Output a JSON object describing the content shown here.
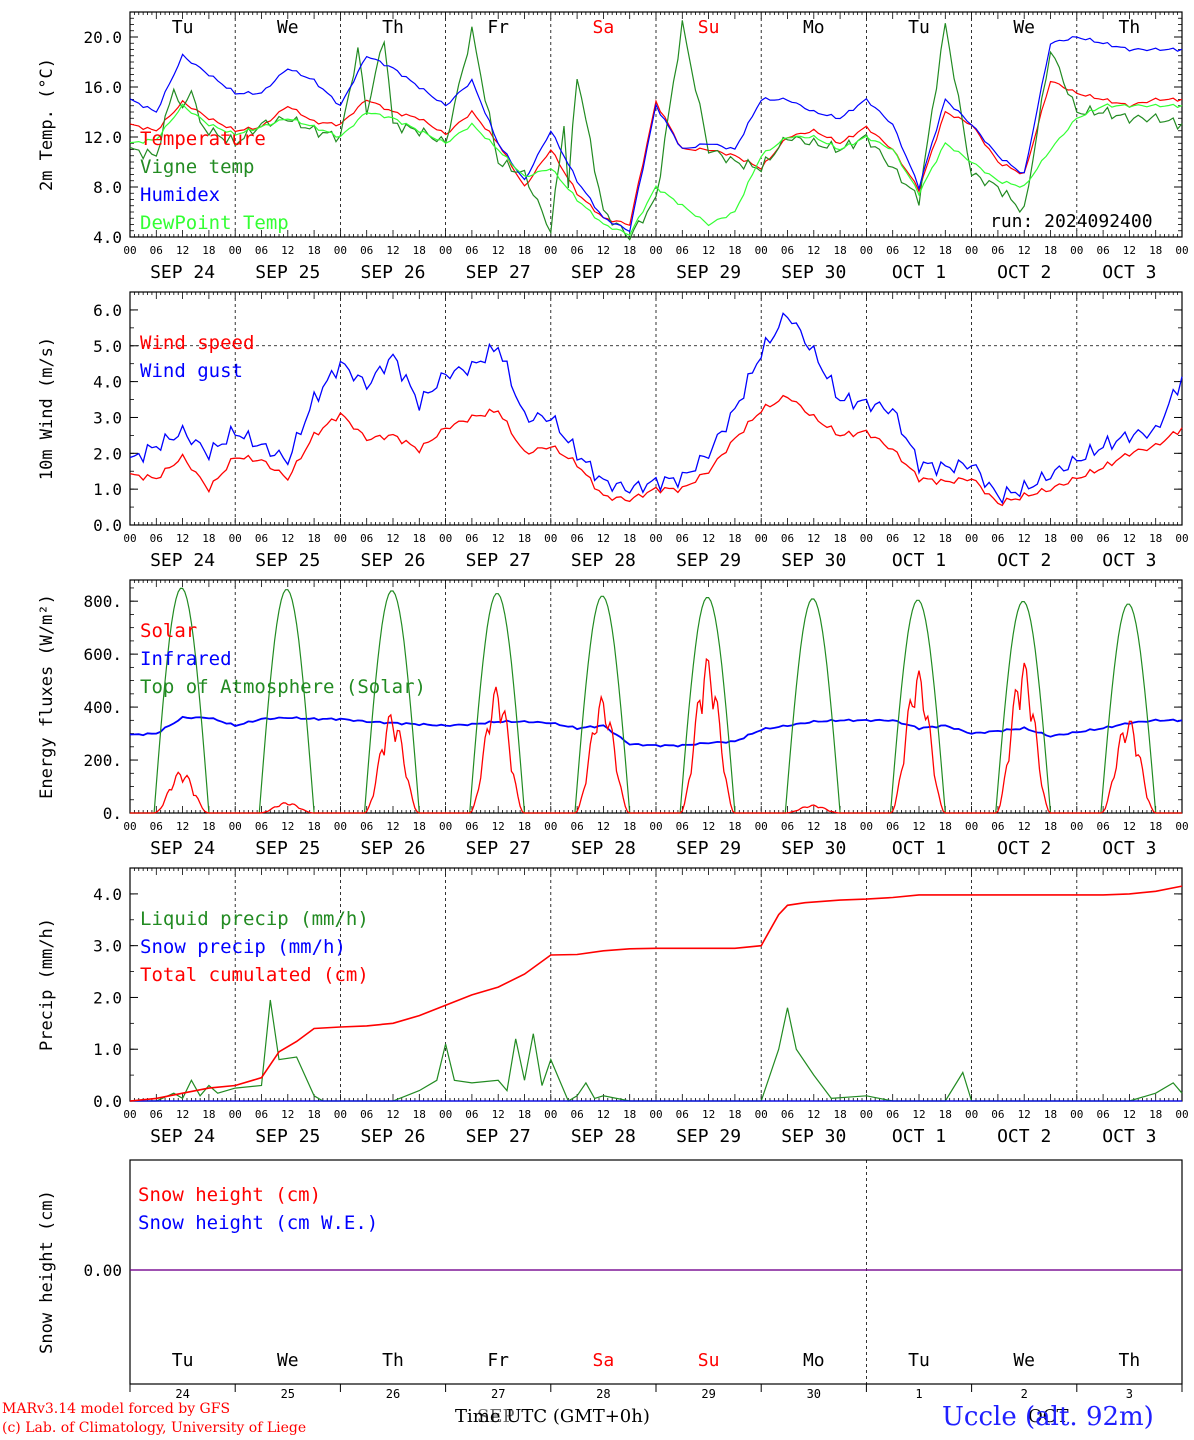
{
  "chart_data": [
    {
      "type": "line",
      "ylabel": "2m Temp. (°C)",
      "ylim": [
        4.0,
        22.0
      ],
      "yticks": [
        "4.0",
        "8.0",
        "12.0",
        "16.0",
        "20.0"
      ],
      "run_label": "run: 2024092400",
      "grid": "dashed at day boundaries",
      "legend_position": "left",
      "x_unit": "hours since 2024-09-24 00 UTC",
      "series": [
        {
          "name": "Temperature",
          "color": "#ff0000",
          "x": [
            0,
            6,
            12,
            18,
            24,
            30,
            36,
            42,
            48,
            54,
            60,
            66,
            72,
            78,
            84,
            90,
            96,
            102,
            108,
            114,
            120,
            126,
            132,
            138,
            144,
            150,
            156,
            162,
            168,
            174,
            180,
            186,
            192,
            198,
            204,
            210,
            216,
            222,
            228,
            234,
            240
          ],
          "values": [
            13.0,
            12.5,
            14.8,
            13.5,
            12.5,
            12.8,
            14.5,
            13.2,
            13.0,
            15.0,
            14.0,
            13.5,
            12.2,
            14.0,
            11.5,
            8.0,
            11.0,
            7.5,
            5.5,
            5.0,
            14.8,
            11.0,
            11.0,
            10.5,
            9.5,
            12.0,
            12.5,
            11.5,
            12.8,
            11.0,
            7.8,
            14.0,
            13.0,
            10.0,
            9.0,
            16.5,
            15.5,
            15.0,
            14.5,
            15.0,
            15.0
          ]
        },
        {
          "name": "Vigne temp",
          "color": "#228b22",
          "x": [
            0,
            6,
            10,
            12,
            14,
            16,
            18,
            24,
            30,
            36,
            42,
            48,
            52,
            54,
            58,
            60,
            66,
            72,
            78,
            84,
            90,
            96,
            99,
            100,
            102,
            108,
            114,
            120,
            126,
            132,
            138,
            144,
            150,
            156,
            162,
            168,
            174,
            180,
            186,
            192,
            198,
            204,
            210,
            216,
            222,
            228,
            234,
            240
          ],
          "values": [
            11.0,
            10.5,
            16.0,
            14.0,
            16.0,
            13.0,
            12.5,
            11.5,
            13.0,
            13.5,
            12.5,
            12.0,
            19.0,
            14.0,
            20.0,
            13.0,
            12.5,
            11.5,
            20.5,
            10.0,
            9.0,
            4.5,
            13.0,
            8.0,
            17.0,
            6.0,
            4.0,
            7.0,
            21.0,
            11.0,
            10.0,
            9.5,
            12.0,
            11.5,
            11.0,
            12.0,
            9.5,
            7.0,
            21.0,
            9.0,
            8.0,
            6.0,
            19.0,
            14.0,
            14.0,
            13.5,
            13.5,
            13.0
          ]
        },
        {
          "name": "Humidex",
          "color": "#0000ff",
          "x": [
            0,
            6,
            12,
            18,
            24,
            30,
            36,
            42,
            48,
            54,
            60,
            66,
            72,
            78,
            84,
            90,
            96,
            102,
            108,
            114,
            120,
            126,
            132,
            138,
            144,
            150,
            156,
            162,
            168,
            174,
            180,
            186,
            192,
            198,
            204,
            210,
            216,
            222,
            228,
            234,
            240
          ],
          "values": [
            15.0,
            14.0,
            18.5,
            17.0,
            15.5,
            15.5,
            17.5,
            16.5,
            14.5,
            18.5,
            17.5,
            16.0,
            14.5,
            16.5,
            11.5,
            8.5,
            12.5,
            8.5,
            5.5,
            4.5,
            14.5,
            11.0,
            11.5,
            11.0,
            15.0,
            15.0,
            14.0,
            13.5,
            15.0,
            13.0,
            8.0,
            15.0,
            13.0,
            10.5,
            9.0,
            19.5,
            20.0,
            19.5,
            19.0,
            19.0,
            19.0
          ]
        },
        {
          "name": "DewPoint Temp",
          "color": "#33ff33",
          "x": [
            0,
            6,
            12,
            18,
            24,
            30,
            36,
            42,
            48,
            54,
            60,
            66,
            72,
            78,
            84,
            90,
            96,
            102,
            108,
            114,
            120,
            126,
            132,
            138,
            144,
            150,
            156,
            162,
            168,
            174,
            180,
            186,
            192,
            198,
            204,
            210,
            216,
            222,
            228,
            234,
            240
          ],
          "values": [
            11.5,
            11.8,
            14.5,
            13.0,
            12.2,
            12.8,
            13.5,
            12.8,
            12.0,
            14.0,
            13.5,
            12.5,
            11.5,
            13.0,
            11.0,
            8.8,
            9.5,
            7.0,
            5.0,
            4.2,
            8.0,
            6.5,
            5.0,
            6.0,
            10.5,
            12.0,
            12.0,
            11.0,
            12.0,
            11.0,
            7.5,
            11.5,
            10.0,
            8.5,
            8.0,
            11.0,
            13.5,
            14.5,
            14.5,
            14.5,
            14.5
          ]
        }
      ]
    },
    {
      "type": "line",
      "ylabel": "10m Wind (m/s)",
      "ylim": [
        0.0,
        6.5
      ],
      "yticks": [
        "0.0",
        "1.0",
        "2.0",
        "3.0",
        "4.0",
        "5.0",
        "6.0"
      ],
      "reference_line": 5.0,
      "legend_position": "top-left",
      "x_unit": "hours since 2024-09-24 00 UTC",
      "series": [
        {
          "name": "Wind speed",
          "color": "#ff0000",
          "x": [
            0,
            6,
            12,
            18,
            24,
            30,
            36,
            42,
            48,
            54,
            60,
            66,
            72,
            78,
            84,
            90,
            96,
            102,
            108,
            114,
            120,
            126,
            132,
            138,
            144,
            150,
            156,
            162,
            168,
            174,
            180,
            186,
            192,
            198,
            204,
            210,
            216,
            222,
            228,
            234,
            240
          ],
          "values": [
            1.4,
            1.3,
            1.9,
            1.0,
            1.9,
            1.8,
            1.3,
            2.5,
            3.1,
            2.4,
            2.5,
            2.1,
            2.7,
            3.0,
            3.2,
            2.0,
            2.2,
            1.7,
            0.8,
            0.7,
            1.0,
            1.0,
            1.5,
            2.4,
            3.2,
            3.6,
            3.0,
            2.5,
            2.6,
            2.1,
            1.3,
            1.2,
            1.3,
            0.6,
            0.8,
            1.0,
            1.3,
            1.6,
            2.0,
            2.2,
            2.7
          ]
        },
        {
          "name": "Wind gust",
          "color": "#0000ff",
          "x": [
            0,
            6,
            12,
            18,
            24,
            30,
            36,
            42,
            48,
            54,
            60,
            66,
            72,
            78,
            84,
            90,
            96,
            102,
            108,
            114,
            120,
            126,
            132,
            138,
            144,
            150,
            156,
            162,
            168,
            174,
            180,
            186,
            192,
            198,
            204,
            210,
            216,
            222,
            228,
            234,
            240
          ],
          "values": [
            1.8,
            2.2,
            2.6,
            2.0,
            2.6,
            2.2,
            1.8,
            3.5,
            4.5,
            3.9,
            4.7,
            3.4,
            4.2,
            4.4,
            5.0,
            3.0,
            3.0,
            2.0,
            1.2,
            1.0,
            1.2,
            1.3,
            2.0,
            3.2,
            4.8,
            5.9,
            4.8,
            3.5,
            3.4,
            3.2,
            1.7,
            1.6,
            1.7,
            0.8,
            1.0,
            1.4,
            1.8,
            2.2,
            2.5,
            2.6,
            4.1
          ]
        }
      ]
    },
    {
      "type": "line",
      "ylabel": "Energy fluxes (W/m²)",
      "ylim": [
        0,
        880
      ],
      "yticks": [
        "0.",
        "200.",
        "400.",
        "600.",
        "800."
      ],
      "legend_position": "top-left",
      "x_unit": "hours since 2024-09-24 00 UTC",
      "daily_peaks": {
        "Solar": [
          160,
          40,
          380,
          480,
          440,
          590,
          30,
          540,
          575,
          360
        ],
        "Top of Atmosphere (Solar)": [
          850,
          845,
          840,
          830,
          820,
          815,
          810,
          805,
          800,
          790
        ]
      },
      "series": [
        {
          "name": "Solar",
          "color": "#ff0000"
        },
        {
          "name": "Infrared",
          "color": "#0000ff",
          "x": [
            0,
            6,
            12,
            18,
            24,
            30,
            36,
            42,
            48,
            54,
            60,
            66,
            72,
            78,
            84,
            90,
            96,
            102,
            108,
            114,
            120,
            126,
            132,
            138,
            144,
            150,
            156,
            162,
            168,
            174,
            180,
            186,
            192,
            198,
            204,
            210,
            216,
            222,
            228,
            234,
            240
          ],
          "values": [
            295,
            300,
            360,
            360,
            330,
            355,
            360,
            355,
            355,
            345,
            340,
            335,
            330,
            335,
            345,
            345,
            340,
            320,
            330,
            260,
            255,
            255,
            265,
            270,
            315,
            330,
            345,
            350,
            350,
            350,
            320,
            330,
            300,
            310,
            320,
            290,
            305,
            320,
            340,
            350,
            350
          ]
        },
        {
          "name": "Top of Atmosphere (Solar)",
          "color": "#228b22"
        }
      ]
    },
    {
      "type": "line",
      "ylabel": "Precip (mm/h)",
      "ylim": [
        0.0,
        4.5
      ],
      "yticks": [
        "0.0",
        "1.0",
        "2.0",
        "3.0",
        "4.0"
      ],
      "legend_position": "top-left",
      "x_unit": "hours since 2024-09-24 00 UTC",
      "series": [
        {
          "name": "Liquid precip (mm/h)",
          "color": "#228b22",
          "x": [
            0,
            6,
            10,
            12,
            14,
            16,
            18,
            20,
            24,
            30,
            32,
            34,
            38,
            42,
            44,
            48,
            54,
            60,
            66,
            70,
            72,
            74,
            78,
            84,
            86,
            88,
            90,
            92,
            94,
            96,
            100,
            102,
            104,
            106,
            108,
            114,
            120,
            126,
            132,
            138,
            144,
            148,
            150,
            152,
            156,
            160,
            168,
            174,
            180,
            186,
            190,
            192,
            198,
            204,
            210,
            216,
            222,
            228,
            232,
            234,
            238,
            240
          ],
          "values": [
            0,
            0,
            0.15,
            0.05,
            0.4,
            0.1,
            0.3,
            0.15,
            0.25,
            0.3,
            1.95,
            0.8,
            0.85,
            0.1,
            0,
            0,
            0,
            0,
            0.2,
            0.4,
            1.1,
            0.4,
            0.35,
            0.4,
            0.2,
            1.2,
            0.4,
            1.3,
            0.3,
            0.8,
            0,
            0.1,
            0.35,
            0.05,
            0.1,
            0,
            0,
            0,
            0,
            0,
            0,
            1.0,
            1.8,
            1.0,
            0.5,
            0.05,
            0.1,
            0,
            0,
            0,
            0.55,
            0,
            0,
            0,
            0,
            0,
            0,
            0,
            0.1,
            0.15,
            0.35,
            0.15
          ]
        },
        {
          "name": "Snow precip (mm/h)",
          "color": "#0000ff",
          "x": [
            0,
            240
          ],
          "values": [
            0,
            0
          ]
        },
        {
          "name": "Total cumulated (cm)",
          "color": "#ff0000",
          "x": [
            0,
            6,
            12,
            18,
            24,
            30,
            34,
            38,
            42,
            48,
            54,
            60,
            66,
            72,
            78,
            84,
            90,
            96,
            102,
            108,
            114,
            120,
            126,
            132,
            138,
            144,
            148,
            150,
            154,
            162,
            168,
            174,
            180,
            186,
            192,
            198,
            204,
            210,
            216,
            222,
            228,
            234,
            240
          ],
          "values": [
            0,
            0.05,
            0.15,
            0.25,
            0.3,
            0.45,
            0.95,
            1.15,
            1.4,
            1.43,
            1.45,
            1.5,
            1.65,
            1.85,
            2.05,
            2.2,
            2.45,
            2.82,
            2.83,
            2.9,
            2.94,
            2.95,
            2.95,
            2.95,
            2.95,
            3.0,
            3.6,
            3.78,
            3.83,
            3.88,
            3.9,
            3.93,
            3.98,
            3.98,
            3.98,
            3.98,
            3.98,
            3.98,
            3.98,
            3.98,
            4.0,
            4.05,
            4.15
          ]
        }
      ]
    },
    {
      "type": "line",
      "ylabel": "Snow height (cm)",
      "ytick": "0.00",
      "legend_position": "top-left",
      "series": [
        {
          "name": "Snow height (cm)",
          "color": "#ff0000",
          "values": [
            0,
            0
          ]
        },
        {
          "name": "Snow height (cm W.E.)",
          "color": "#0000ff",
          "values": [
            0,
            0
          ]
        }
      ]
    }
  ],
  "axis": {
    "hour_ticks": [
      "00",
      "06",
      "12",
      "18"
    ],
    "final_hour_tick": "00",
    "dates": [
      "SEP 24",
      "SEP 25",
      "SEP 26",
      "SEP 27",
      "SEP 28",
      "SEP 29",
      "SEP 30",
      "OCT  1",
      "OCT  2",
      "OCT  3"
    ],
    "weekdays": [
      "Tu",
      "We",
      "Th",
      "Fr",
      "Sa",
      "Su",
      "Mo",
      "Tu",
      "We",
      "Th"
    ],
    "weekend_color": "#ff0000",
    "day_numbers": [
      "24",
      "25",
      "26",
      "27",
      "28",
      "29",
      "30",
      "1",
      "2",
      "3"
    ],
    "bottom_month_left": "SEP",
    "bottom_month_right": "OCT",
    "time_label": "Time UTC (GMT+0h)"
  },
  "footer": {
    "line1": "MARv3.14 model forced by GFS",
    "line2": "(c) Lab. of Climatology, University of Liege"
  },
  "station": "Uccle (alt. 92m)"
}
